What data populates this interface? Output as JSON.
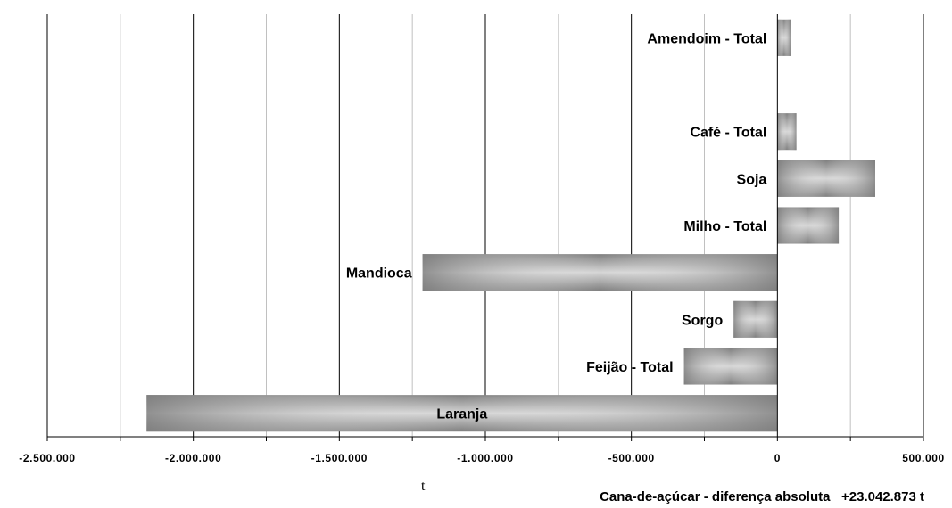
{
  "chart_data": {
    "type": "bar",
    "orientation": "horizontal",
    "categories": [
      "Amendoim - Total",
      "",
      "Café - Total",
      "Soja",
      "Milho - Total",
      "Mandioca",
      "Sorgo",
      "Feijão - Total",
      "Laranja"
    ],
    "values": [
      45000,
      null,
      65000,
      335000,
      210000,
      -1215000,
      -150000,
      -320000,
      -2160000
    ],
    "xlabel": "t",
    "ylabel": "",
    "xlim": [
      -2500000,
      500000
    ],
    "x_ticks": [
      -2500000,
      -2000000,
      -1500000,
      -1000000,
      -500000,
      0,
      500000
    ],
    "x_tick_labels": [
      "-2.500.000",
      "-2.000.000",
      "-1.500.000",
      "-1.000.000",
      "-500.000",
      "0",
      "500.000"
    ],
    "grid": "vertical",
    "colors": {
      "bar": "#8c8c8c",
      "bar_highlight": "#d4d4d4",
      "major_grid": "#000000",
      "minor_grid": "#c0c0c0"
    }
  },
  "note": {
    "label": "Cana-de-açúcar - diferença absoluta",
    "value": "+23.042.873 t"
  }
}
